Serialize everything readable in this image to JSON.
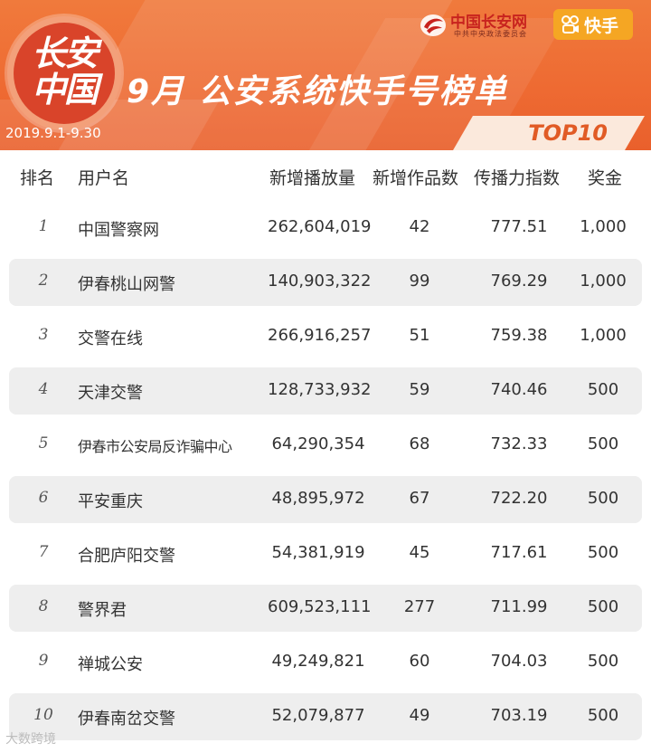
{
  "header": {
    "logo_line1": "长安",
    "logo_line2": "中国",
    "title": "9月  公安系统快手号榜单",
    "date_range": "2019.9.1-9.30",
    "badge": "TOP10",
    "partner_name": "中国长安网",
    "partner_sub": "中共中央政法委员会",
    "kuaishou_label": "快手"
  },
  "colors": {
    "banner": "#ee6a32",
    "badge_text": "#e15b25",
    "row_shade": "#eeeeee"
  },
  "table": {
    "columns": [
      "排名",
      "用户名",
      "新增播放量",
      "新增作品数",
      "传播力指数",
      "奖金"
    ],
    "rows": [
      {
        "rank": "1",
        "name": "中国警察网",
        "plays": "262,604,019",
        "works": "42",
        "index": "777.51",
        "prize": "1,000"
      },
      {
        "rank": "2",
        "name": "伊春桃山网警",
        "plays": "140,903,322",
        "works": "99",
        "index": "769.29",
        "prize": "1,000"
      },
      {
        "rank": "3",
        "name": "交警在线",
        "plays": "266,916,257",
        "works": "51",
        "index": "759.38",
        "prize": "1,000"
      },
      {
        "rank": "4",
        "name": "天津交警",
        "plays": "128,733,932",
        "works": "59",
        "index": "740.46",
        "prize": "500"
      },
      {
        "rank": "5",
        "name": "伊春市公安局反诈骗中心",
        "plays": "64,290,354",
        "works": "68",
        "index": "732.33",
        "prize": "500"
      },
      {
        "rank": "6",
        "name": "平安重庆",
        "plays": "48,895,972",
        "works": "67",
        "index": "722.20",
        "prize": "500"
      },
      {
        "rank": "7",
        "name": "合肥庐阳交警",
        "plays": "54,381,919",
        "works": "45",
        "index": "717.61",
        "prize": "500"
      },
      {
        "rank": "8",
        "name": "警界君",
        "plays": "609,523,111",
        "works": "277",
        "index": "711.99",
        "prize": "500"
      },
      {
        "rank": "9",
        "name": "禅城公安",
        "plays": "49,249,821",
        "works": "60",
        "index": "704.03",
        "prize": "500"
      },
      {
        "rank": "10",
        "name": "伊春南岔交警",
        "plays": "52,079,877",
        "works": "49",
        "index": "703.19",
        "prize": "500"
      }
    ]
  },
  "watermark": "大数跨境"
}
